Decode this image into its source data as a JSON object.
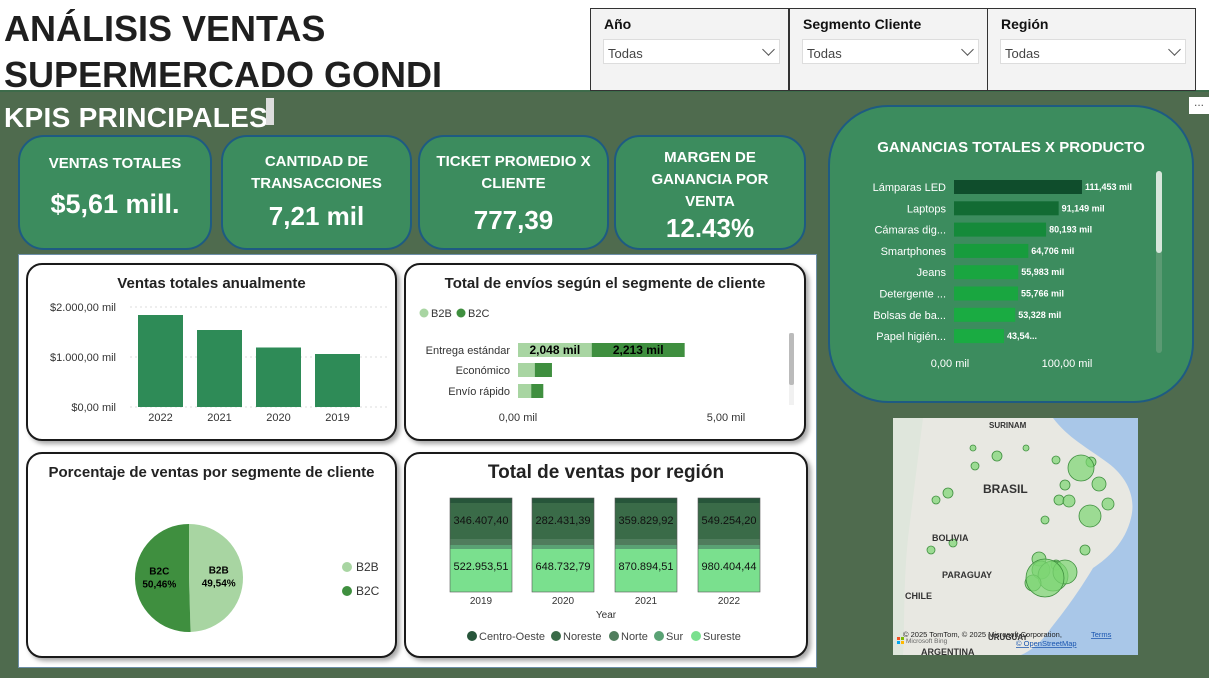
{
  "header": {
    "title": "ANÁLISIS VENTAS\nSUPERMERCADO GONDI"
  },
  "slicers": [
    {
      "label": "Año",
      "value": "Todas"
    },
    {
      "label": "Segmento Cliente",
      "value": "Todas"
    },
    {
      "label": "Región",
      "value": "Todas"
    }
  ],
  "kpi_heading": "KPIS PRINCIPALES",
  "more_options": "...",
  "kpis": [
    {
      "label": "VENTAS TOTALES",
      "value": "$5,61 mill."
    },
    {
      "label": "CANTIDAD DE TRANSACCIONES",
      "value": "7,21 mil"
    },
    {
      "label": "TICKET PROMEDIO X CLIENTE",
      "value": "777,39"
    },
    {
      "label": "MARGEN DE GANANCIA POR VENTA",
      "value": "12.43%"
    }
  ],
  "colors": {
    "kpi_bg": "#3c8c5e",
    "border": "#1e5b82",
    "bar": "#2e8b57",
    "b2b": "#a8d5a2",
    "b2c": "#3f8f3f"
  },
  "chart_data": [
    {
      "type": "bar",
      "title": "Ventas totales anualmente",
      "categories": [
        "2022",
        "2021",
        "2020",
        "2019"
      ],
      "values": [
        1840000,
        1540000,
        1190000,
        1060000
      ],
      "yticks": [
        "$2.000,00 mil",
        "$1.000,00 mil",
        "$0,00 mil"
      ],
      "ylim": [
        0,
        2000000
      ]
    },
    {
      "type": "bar",
      "title": "Total de envíos según el segmente de cliente",
      "orientation": "horizontal",
      "stacked": true,
      "legend": [
        "B2B",
        "B2C"
      ],
      "categories": [
        "Entrega estándar",
        "Económico",
        "Envío rápido"
      ],
      "series": [
        {
          "name": "B2B",
          "values": [
            2048,
            700,
            550
          ]
        },
        {
          "name": "B2C",
          "values": [
            2213,
            780,
            550
          ]
        }
      ],
      "data_labels": [
        "2,048 mil",
        "2,213 mil"
      ],
      "xticks": [
        "0,00 mil",
        "5,00 mil"
      ]
    },
    {
      "type": "pie",
      "title": "Porcentaje de ventas por segmente de cliente",
      "slices": [
        {
          "name": "B2B",
          "value": 49.54,
          "label": "B2B",
          "pct": "49,54%"
        },
        {
          "name": "B2C",
          "value": 50.46,
          "label": "B2C",
          "pct": "50,46%"
        }
      ],
      "legend": [
        "B2B",
        "B2C"
      ]
    },
    {
      "type": "bar",
      "title": "Total de ventas por región",
      "stacked": true,
      "xlabel": "Year",
      "categories": [
        "2019",
        "2020",
        "2021",
        "2022"
      ],
      "top_labels": [
        "346.407,40",
        "282.431,39",
        "359.829,92",
        "549.254,20"
      ],
      "bottom_labels": [
        "522.953,51",
        "648.732,79",
        "870.894,51",
        "980.404,44"
      ],
      "legend": [
        "Centro-Oeste",
        "Noreste",
        "Norte",
        "Sur",
        "Sureste"
      ]
    },
    {
      "type": "bar",
      "title": "GANANCIAS TOTALES X PRODUCTO",
      "orientation": "horizontal",
      "categories": [
        "Lámparas LED",
        "Laptops",
        "Cámaras dig...",
        "Smartphones",
        "Jeans",
        "Detergente ...",
        "Bolsas de ba...",
        "Papel higién..."
      ],
      "values": [
        111453,
        91149,
        80193,
        64706,
        55983,
        55766,
        53328,
        43540
      ],
      "labels": [
        "111,453 mil",
        "91,149 mil",
        "80,193 mil",
        "64,706 mil",
        "55,983 mil",
        "55,766 mil",
        "53,328 mil",
        "43,54..."
      ],
      "xticks": [
        "0,00 mil",
        "100,00 mil"
      ]
    }
  ],
  "map": {
    "labels": [
      "SURINAM",
      "BRASIL",
      "BOLIVIA",
      "PARAGUAY",
      "CHILE",
      "URUGUAY",
      "ARGENTINA"
    ],
    "attribution": "© 2025 TomTom, © 2025 Microsoft Corporation,",
    "terms": "Terms",
    "osm": "© OpenStreetMap",
    "bing": "Microsoft Bing"
  }
}
